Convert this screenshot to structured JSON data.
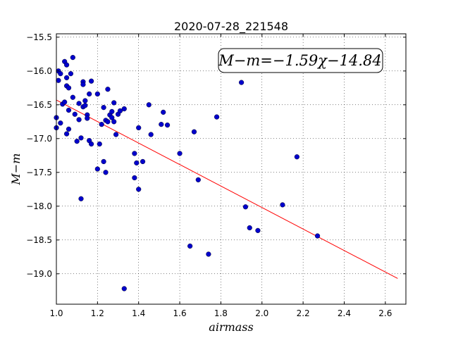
{
  "chart_data": {
    "type": "scatter",
    "title": "2020-07-28_221548",
    "xlabel": "airmass",
    "ylabel": "M−m",
    "xlim": [
      1.0,
      2.7
    ],
    "ylim": [
      -19.45,
      -15.45
    ],
    "y_inverted": true,
    "grid": true,
    "grid_style": "dotted",
    "x_ticks": [
      1.0,
      1.2,
      1.4,
      1.6,
      1.8,
      2.0,
      2.2,
      2.4,
      2.6
    ],
    "x_tick_labels": [
      "1.0",
      "1.2",
      "1.4",
      "1.6",
      "1.8",
      "2.0",
      "2.2",
      "2.4",
      "2.6"
    ],
    "y_ticks": [
      -15.5,
      -16.0,
      -16.5,
      -17.0,
      -17.5,
      -18.0,
      -18.5,
      -19.0
    ],
    "y_tick_labels": [
      "−15.5",
      "−16.0",
      "−16.5",
      "−17.0",
      "−17.5",
      "−18.0",
      "−18.5",
      "−19.0"
    ],
    "annotation": "M−m=−1.59χ−14.84",
    "fit": {
      "slope": -1.59,
      "intercept": -14.84,
      "x_range": [
        1.0,
        2.66
      ],
      "color": "#ff0000"
    },
    "point_color": "#0000cc",
    "points": [
      {
        "x": 1.0,
        "y": -16.69
      },
      {
        "x": 1.0,
        "y": -16.84
      },
      {
        "x": 1.01,
        "y": -16.14
      },
      {
        "x": 1.01,
        "y": -16.0
      },
      {
        "x": 1.02,
        "y": -16.04
      },
      {
        "x": 1.02,
        "y": -16.77
      },
      {
        "x": 1.03,
        "y": -16.49
      },
      {
        "x": 1.04,
        "y": -15.86
      },
      {
        "x": 1.04,
        "y": -16.46
      },
      {
        "x": 1.05,
        "y": -15.91
      },
      {
        "x": 1.05,
        "y": -16.1
      },
      {
        "x": 1.05,
        "y": -16.93
      },
      {
        "x": 1.05,
        "y": -16.22
      },
      {
        "x": 1.06,
        "y": -16.25
      },
      {
        "x": 1.06,
        "y": -16.86
      },
      {
        "x": 1.06,
        "y": -16.58
      },
      {
        "x": 1.07,
        "y": -16.04
      },
      {
        "x": 1.08,
        "y": -15.8
      },
      {
        "x": 1.08,
        "y": -16.39
      },
      {
        "x": 1.09,
        "y": -16.64
      },
      {
        "x": 1.1,
        "y": -17.04
      },
      {
        "x": 1.11,
        "y": -16.48
      },
      {
        "x": 1.11,
        "y": -16.72
      },
      {
        "x": 1.12,
        "y": -16.99
      },
      {
        "x": 1.12,
        "y": -17.89
      },
      {
        "x": 1.13,
        "y": -16.53
      },
      {
        "x": 1.13,
        "y": -16.16
      },
      {
        "x": 1.13,
        "y": -16.2
      },
      {
        "x": 1.14,
        "y": -16.44
      },
      {
        "x": 1.14,
        "y": -16.51
      },
      {
        "x": 1.15,
        "y": -16.65
      },
      {
        "x": 1.15,
        "y": -16.7
      },
      {
        "x": 1.16,
        "y": -16.34
      },
      {
        "x": 1.16,
        "y": -17.03
      },
      {
        "x": 1.17,
        "y": -17.08
      },
      {
        "x": 1.17,
        "y": -16.15
      },
      {
        "x": 1.2,
        "y": -16.34
      },
      {
        "x": 1.2,
        "y": -17.45
      },
      {
        "x": 1.21,
        "y": -17.08
      },
      {
        "x": 1.22,
        "y": -16.79
      },
      {
        "x": 1.23,
        "y": -16.54
      },
      {
        "x": 1.23,
        "y": -17.34
      },
      {
        "x": 1.24,
        "y": -17.5
      },
      {
        "x": 1.24,
        "y": -16.73
      },
      {
        "x": 1.25,
        "y": -16.27
      },
      {
        "x": 1.25,
        "y": -16.75
      },
      {
        "x": 1.26,
        "y": -16.65
      },
      {
        "x": 1.27,
        "y": -16.69
      },
      {
        "x": 1.27,
        "y": -16.6
      },
      {
        "x": 1.28,
        "y": -16.75
      },
      {
        "x": 1.28,
        "y": -16.47
      },
      {
        "x": 1.29,
        "y": -16.94
      },
      {
        "x": 1.3,
        "y": -16.64
      },
      {
        "x": 1.31,
        "y": -16.59
      },
      {
        "x": 1.33,
        "y": -16.56
      },
      {
        "x": 1.33,
        "y": -19.22
      },
      {
        "x": 1.38,
        "y": -17.22
      },
      {
        "x": 1.38,
        "y": -17.58
      },
      {
        "x": 1.39,
        "y": -17.36
      },
      {
        "x": 1.4,
        "y": -17.75
      },
      {
        "x": 1.4,
        "y": -16.84
      },
      {
        "x": 1.42,
        "y": -17.34
      },
      {
        "x": 1.45,
        "y": -16.5
      },
      {
        "x": 1.46,
        "y": -16.94
      },
      {
        "x": 1.51,
        "y": -16.79
      },
      {
        "x": 1.52,
        "y": -16.61
      },
      {
        "x": 1.54,
        "y": -16.8
      },
      {
        "x": 1.6,
        "y": -17.22
      },
      {
        "x": 1.65,
        "y": -18.59
      },
      {
        "x": 1.67,
        "y": -16.9
      },
      {
        "x": 1.69,
        "y": -17.61
      },
      {
        "x": 1.74,
        "y": -18.71
      },
      {
        "x": 1.78,
        "y": -16.68
      },
      {
        "x": 1.9,
        "y": -16.17
      },
      {
        "x": 1.92,
        "y": -18.01
      },
      {
        "x": 1.94,
        "y": -18.32
      },
      {
        "x": 1.98,
        "y": -18.36
      },
      {
        "x": 2.1,
        "y": -17.98
      },
      {
        "x": 2.17,
        "y": -17.27
      },
      {
        "x": 2.27,
        "y": -18.44
      }
    ]
  }
}
